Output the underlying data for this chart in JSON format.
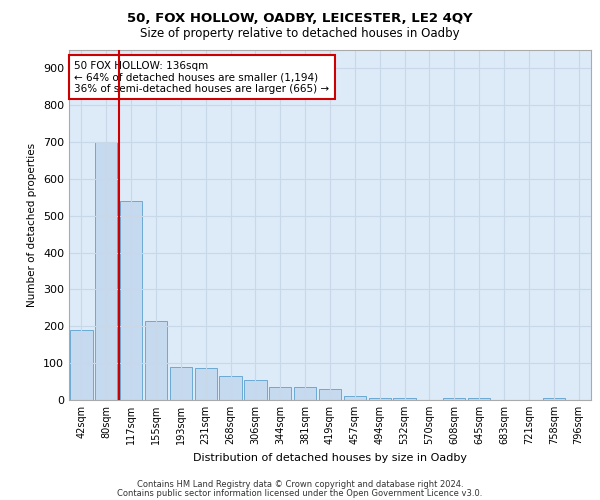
{
  "title": "50, FOX HOLLOW, OADBY, LEICESTER, LE2 4QY",
  "subtitle": "Size of property relative to detached houses in Oadby",
  "xlabel": "Distribution of detached houses by size in Oadby",
  "ylabel": "Number of detached properties",
  "categories": [
    "42sqm",
    "80sqm",
    "117sqm",
    "155sqm",
    "193sqm",
    "231sqm",
    "268sqm",
    "306sqm",
    "344sqm",
    "381sqm",
    "419sqm",
    "457sqm",
    "494sqm",
    "532sqm",
    "570sqm",
    "608sqm",
    "645sqm",
    "683sqm",
    "721sqm",
    "758sqm",
    "796sqm"
  ],
  "values": [
    190,
    700,
    540,
    215,
    90,
    88,
    65,
    55,
    35,
    35,
    30,
    10,
    5,
    5,
    0,
    5,
    5,
    0,
    0,
    5,
    0
  ],
  "bar_color": "#c5d9ef",
  "bar_edge_color": "#6aaad4",
  "red_line_x": 1.5,
  "annotation_text": "50 FOX HOLLOW: 136sqm\n← 64% of detached houses are smaller (1,194)\n36% of semi-detached houses are larger (665) →",
  "annotation_box_color": "#ffffff",
  "annotation_box_edge_color": "#cc0000",
  "red_line_color": "#cc0000",
  "grid_color": "#c8d8e8",
  "background_color": "#ddeaf8",
  "ylim": [
    0,
    950
  ],
  "yticks": [
    0,
    100,
    200,
    300,
    400,
    500,
    600,
    700,
    800,
    900
  ],
  "footer_line1": "Contains HM Land Registry data © Crown copyright and database right 2024.",
  "footer_line2": "Contains public sector information licensed under the Open Government Licence v3.0."
}
